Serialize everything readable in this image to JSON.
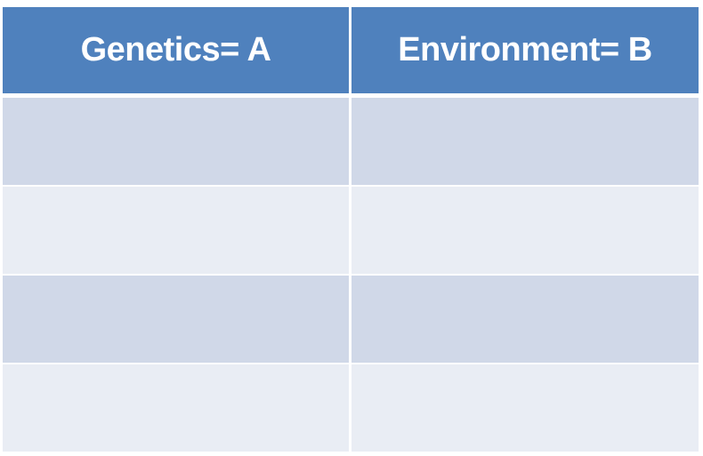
{
  "table": {
    "headers": [
      "Genetics= A",
      "Environment= B"
    ]
  }
}
